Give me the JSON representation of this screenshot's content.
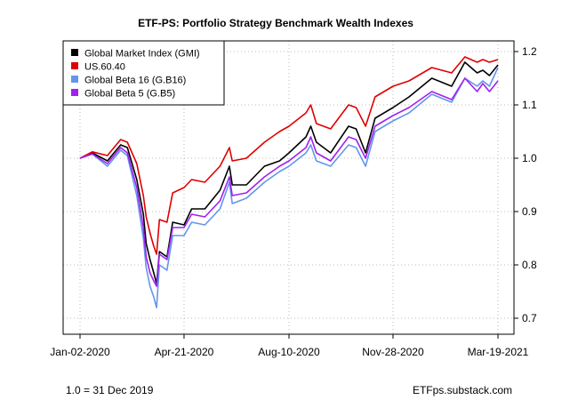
{
  "chart_data": {
    "type": "line",
    "title": "ETF-PS: Portfolio Strategy Benchmark Wealth Indexes",
    "xlabel": "",
    "ylabel": "",
    "x_ticks": [
      "Jan-02-2020",
      "Apr-21-2020",
      "Aug-10-2020",
      "Nov-28-2020",
      "Mar-19-2021"
    ],
    "x": [
      "Jan-02-2020",
      "Jan-15-2020",
      "Jan-31-2020",
      "Feb-14-2020",
      "Feb-21-2020",
      "Mar-02-2020",
      "Mar-09-2020",
      "Mar-12-2020",
      "Mar-16-2020",
      "Mar-20-2020",
      "Mar-23-2020",
      "Mar-26-2020",
      "Apr-03-2020",
      "Apr-09-2020",
      "Apr-21-2020",
      "Apr-29-2020",
      "May-13-2020",
      "May-29-2020",
      "Jun-08-2020",
      "Jun-11-2020",
      "Jun-26-2020",
      "Jul-15-2020",
      "Jul-31-2020",
      "Aug-10-2020",
      "Aug-28-2020",
      "Sep-02-2020",
      "Sep-08-2020",
      "Sep-23-2020",
      "Oct-12-2020",
      "Oct-20-2020",
      "Oct-30-2020",
      "Nov-09-2020",
      "Nov-28-2020",
      "Dec-15-2020",
      "Jan-08-2021",
      "Jan-29-2021",
      "Feb-12-2021",
      "Feb-25-2021",
      "Mar-03-2021",
      "Mar-10-2021",
      "Mar-19-2021"
    ],
    "series": [
      {
        "name": "Global Market Index (GMI)",
        "color": "#000000",
        "values": [
          1.0,
          1.01,
          0.995,
          1.025,
          1.02,
          0.96,
          0.895,
          0.84,
          0.81,
          0.785,
          0.765,
          0.825,
          0.815,
          0.88,
          0.875,
          0.905,
          0.905,
          0.94,
          0.985,
          0.95,
          0.95,
          0.985,
          0.995,
          1.01,
          1.04,
          1.06,
          1.03,
          1.01,
          1.06,
          1.055,
          1.01,
          1.075,
          1.095,
          1.115,
          1.15,
          1.135,
          1.18,
          1.16,
          1.165,
          1.155,
          1.175
        ]
      },
      {
        "name": "US.60.40",
        "color": "#e00000",
        "values": [
          1.0,
          1.012,
          1.005,
          1.035,
          1.03,
          0.99,
          0.93,
          0.89,
          0.86,
          0.835,
          0.82,
          0.885,
          0.88,
          0.935,
          0.945,
          0.96,
          0.955,
          0.985,
          1.02,
          0.995,
          1.0,
          1.03,
          1.05,
          1.06,
          1.085,
          1.1,
          1.065,
          1.055,
          1.1,
          1.095,
          1.06,
          1.115,
          1.135,
          1.145,
          1.17,
          1.16,
          1.19,
          1.18,
          1.185,
          1.18,
          1.185
        ]
      },
      {
        "name": "Global Beta 16 (G.B16)",
        "color": "#6495ed",
        "values": [
          1.0,
          1.008,
          0.985,
          1.015,
          1.005,
          0.93,
          0.85,
          0.795,
          0.76,
          0.74,
          0.72,
          0.8,
          0.79,
          0.855,
          0.855,
          0.88,
          0.875,
          0.905,
          0.955,
          0.915,
          0.925,
          0.955,
          0.975,
          0.985,
          1.01,
          1.025,
          0.995,
          0.985,
          1.025,
          1.02,
          0.985,
          1.05,
          1.07,
          1.085,
          1.12,
          1.105,
          1.15,
          1.135,
          1.145,
          1.135,
          1.17
        ]
      },
      {
        "name": "Global Beta 5 (G.B5)",
        "color": "#a020f0",
        "values": [
          1.0,
          1.008,
          0.99,
          1.02,
          1.01,
          0.945,
          0.87,
          0.815,
          0.785,
          0.77,
          0.76,
          0.82,
          0.81,
          0.87,
          0.87,
          0.895,
          0.89,
          0.92,
          0.965,
          0.93,
          0.935,
          0.965,
          0.985,
          0.995,
          1.02,
          1.04,
          1.01,
          0.995,
          1.04,
          1.035,
          1.0,
          1.06,
          1.08,
          1.095,
          1.125,
          1.11,
          1.15,
          1.125,
          1.14,
          1.125,
          1.145
        ]
      }
    ],
    "ylim": [
      0.67,
      1.22
    ],
    "y_ticks": [
      0.7,
      0.8,
      0.9,
      1.0,
      1.1,
      1.2
    ],
    "y_tick_labels": [
      "0.7",
      "0.8",
      "0.9",
      "1.0",
      "1.1",
      "1.2"
    ],
    "y_axis_side": "right",
    "grid": true,
    "legend_position": "top-left"
  },
  "footer": {
    "left": "1.0 = 31 Dec 2019",
    "right": "ETFps.substack.com"
  }
}
